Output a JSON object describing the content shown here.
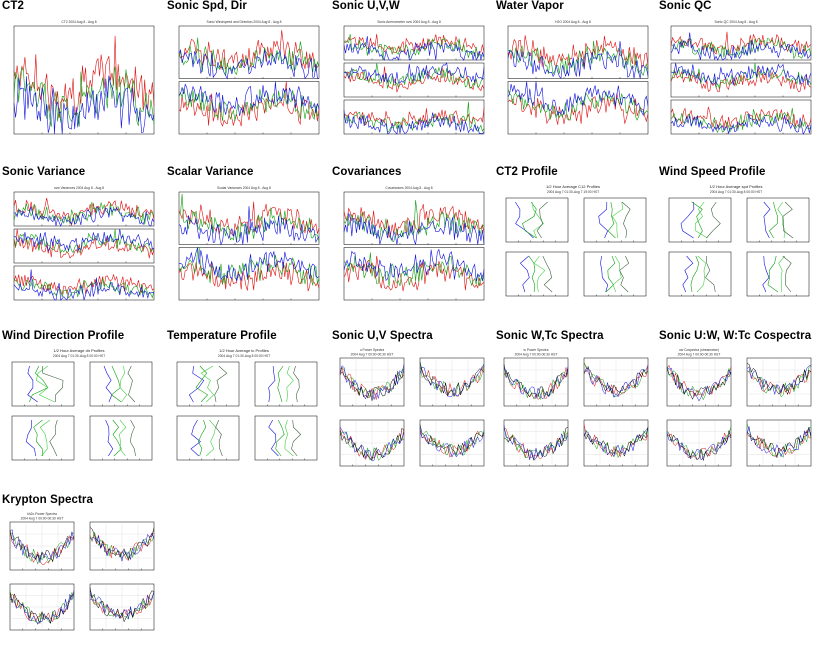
{
  "cells": [
    {
      "title": "CT2",
      "kind": "ts1",
      "caption": "CT2 2004 Aug 8 - Aug 8"
    },
    {
      "title": "Sonic Spd, Dir",
      "kind": "ts2",
      "caption": "Sonic Windspeed and Direction 2004 Aug 8 - Aug 8"
    },
    {
      "title": "Sonic U,V,W",
      "kind": "ts3",
      "caption": "Sonic Anemometer uvw 2004 Aug 8 - Aug 8"
    },
    {
      "title": "Water Vapor",
      "kind": "ts2",
      "caption": "H2O 2004 Aug 8 - Aug 8"
    },
    {
      "title": "Sonic QC",
      "kind": "ts3",
      "caption": "Sonic QC 2004 Aug 8 - Aug 8"
    },
    {
      "title": "Sonic Variance",
      "kind": "ts3",
      "caption": "uvw Variances 2004 Aug 8 - Aug 8"
    },
    {
      "title": "Scalar Variance",
      "kind": "ts2",
      "caption": "Scalar Variances 2004 Aug 8 - Aug 8"
    },
    {
      "title": "Covariances",
      "kind": "ts2",
      "caption": "Covariances 2004 Aug 8 - Aug 8"
    },
    {
      "title": "CT2 Profile",
      "kind": "prof",
      "caption": "1/2 Hour Average C12 Profiles",
      "sub": "2004 Aug 7 01:30-Aug 7 19:00 HST"
    },
    {
      "title": "Wind Speed Profile",
      "kind": "prof",
      "caption": "1/2 Hour Average spd Profiles",
      "sub": "2004 Aug 7 01:30-Aug 8 00:00 HST"
    },
    {
      "title": "Wind Direction Profile",
      "kind": "prof",
      "caption": "1/2 Hour Average dir Profiles",
      "sub": "2004 Aug 7 01:30-Aug 8 00:00 HST"
    },
    {
      "title": "Temperature Profile",
      "kind": "prof",
      "caption": "1/2 Hour Average tc Profiles",
      "sub": "2004 Aug 7 01:30-Aug 8 00:00 HST"
    },
    {
      "title": "Sonic U,V Spectra",
      "kind": "spec",
      "caption": "u Power Spectra",
      "sub": "2004 Aug 7 00:00-00:30 HST"
    },
    {
      "title": "Sonic W,Tc Spectra",
      "kind": "spec",
      "caption": "w Power Spectra",
      "sub": "2004 Aug 7 00:00-00:30 HST"
    },
    {
      "title": "Sonic U:W, W:Tc Cospectra",
      "kind": "spec",
      "caption": "uw Cospectra (streamwise)",
      "sub": "2004 Aug 7 00:00-00:30 HST"
    },
    {
      "title": "Krypton Spectra",
      "kind": "spec",
      "caption": "kh2o Power Spectra",
      "sub": "2004 Aug 7 00:00-00:30 HST"
    }
  ],
  "colors": {
    "red": "#e01010",
    "green": "#10a010",
    "blue": "#1010e0",
    "lime": "#40d040",
    "black": "#000000"
  }
}
